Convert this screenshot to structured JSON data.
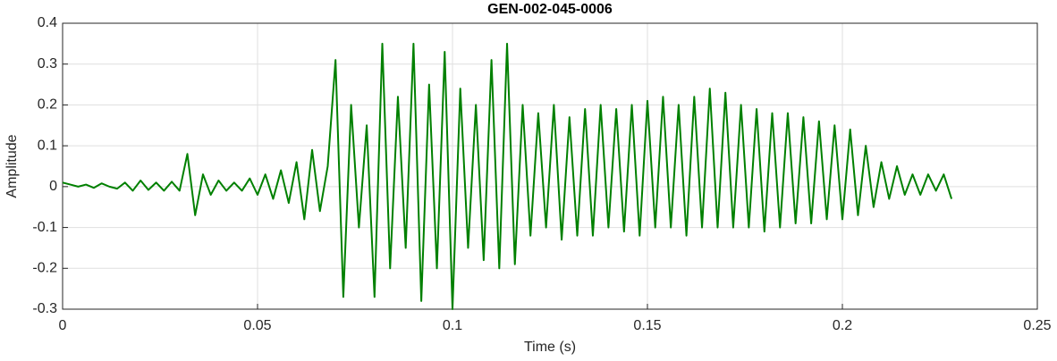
{
  "chart_data": {
    "type": "line",
    "title": "GEN-002-045-0006",
    "x_label": "Time (s)",
    "y_label": "Amplitude",
    "x": [
      0,
      0.002,
      0.004,
      0.006,
      0.008,
      0.01,
      0.012,
      0.014,
      0.016,
      0.018,
      0.02,
      0.022,
      0.024,
      0.026,
      0.028,
      0.03,
      0.032,
      0.034,
      0.036,
      0.038,
      0.04,
      0.042,
      0.044,
      0.046,
      0.048,
      0.05,
      0.052,
      0.054,
      0.056,
      0.058,
      0.06,
      0.062,
      0.064,
      0.066,
      0.068,
      0.07,
      0.072,
      0.074,
      0.076,
      0.078,
      0.08,
      0.082,
      0.084,
      0.086,
      0.088,
      0.09,
      0.092,
      0.094,
      0.096,
      0.098,
      0.1,
      0.102,
      0.104,
      0.106,
      0.108,
      0.11,
      0.112,
      0.114,
      0.116,
      0.118,
      0.12,
      0.122,
      0.124,
      0.126,
      0.128,
      0.13,
      0.132,
      0.134,
      0.136,
      0.138,
      0.14,
      0.142,
      0.144,
      0.146,
      0.148,
      0.15,
      0.152,
      0.154,
      0.156,
      0.158,
      0.16,
      0.162,
      0.164,
      0.166,
      0.168,
      0.17,
      0.172,
      0.174,
      0.176,
      0.178,
      0.18,
      0.182,
      0.184,
      0.186,
      0.188,
      0.19,
      0.192,
      0.194,
      0.196,
      0.198,
      0.2,
      0.202,
      0.204,
      0.206,
      0.208,
      0.21,
      0.212,
      0.214,
      0.216,
      0.218,
      0.22,
      0.222,
      0.224,
      0.226,
      0.228
    ],
    "series": [
      {
        "color": "#008000",
        "values": [
          0.01,
          0.005,
          0,
          0.005,
          -0.003,
          0.008,
          0,
          -0.005,
          0.01,
          -0.01,
          0.015,
          -0.008,
          0.01,
          -0.01,
          0.012,
          -0.01,
          0.08,
          -0.07,
          0.03,
          -0.02,
          0.015,
          -0.01,
          0.01,
          -0.01,
          0.02,
          -0.02,
          0.03,
          -0.03,
          0.04,
          -0.04,
          0.06,
          -0.08,
          0.09,
          -0.06,
          0.05,
          0.31,
          -0.27,
          0.2,
          -0.1,
          0.15,
          -0.27,
          0.35,
          -0.2,
          0.22,
          -0.15,
          0.35,
          -0.28,
          0.25,
          -0.2,
          0.33,
          -0.3,
          0.24,
          -0.15,
          0.2,
          -0.18,
          0.31,
          -0.2,
          0.35,
          -0.19,
          0.2,
          -0.12,
          0.18,
          -0.1,
          0.2,
          -0.13,
          0.17,
          -0.12,
          0.19,
          -0.12,
          0.2,
          -0.1,
          0.19,
          -0.11,
          0.2,
          -0.12,
          0.21,
          -0.1,
          0.22,
          -0.1,
          0.2,
          -0.12,
          0.22,
          -0.1,
          0.24,
          -0.1,
          0.23,
          -0.1,
          0.2,
          -0.1,
          0.19,
          -0.11,
          0.18,
          -0.1,
          0.18,
          -0.09,
          0.17,
          -0.09,
          0.16,
          -0.08,
          0.15,
          -0.08,
          0.14,
          -0.07,
          0.1,
          -0.05,
          0.06,
          -0.03,
          0.05,
          -0.02,
          0.03,
          -0.02,
          0.03,
          -0.01,
          0.03,
          -0.03
        ]
      }
    ],
    "xlim": [
      0,
      0.25
    ],
    "xticks": [
      0,
      0.05,
      0.1,
      0.15,
      0.2,
      0.25
    ],
    "ylim": [
      -0.3,
      0.4
    ],
    "yticks": [
      -0.3,
      -0.2,
      -0.1,
      0,
      0.1,
      0.2,
      0.3,
      0.4
    ],
    "grid": true
  }
}
